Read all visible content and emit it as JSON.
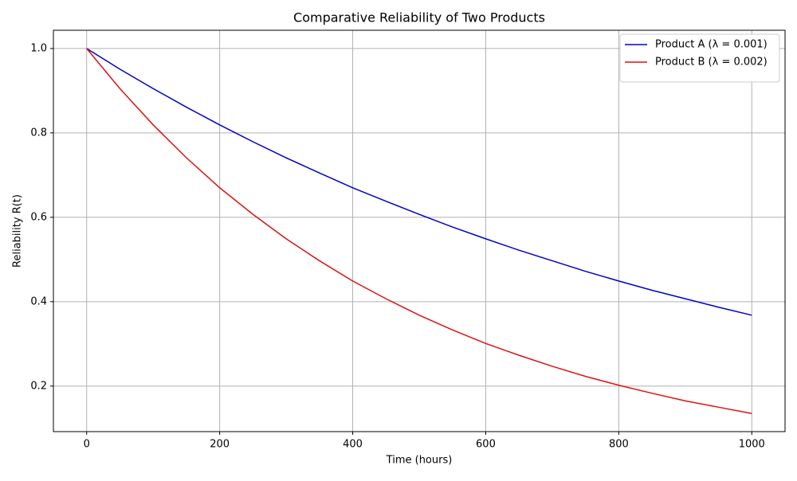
{
  "chart_data": {
    "type": "line",
    "title": "Comparative Reliability of Two Products",
    "x_label": "Time (hours)",
    "y_label": "Reliability R(t)",
    "x": [
      0,
      50,
      100,
      150,
      200,
      250,
      300,
      350,
      400,
      450,
      500,
      550,
      600,
      650,
      700,
      750,
      800,
      850,
      900,
      950,
      1000
    ],
    "series": [
      {
        "name": "Product A (λ = 0.001)",
        "color": "#0000cc",
        "values": [
          1,
          0.951,
          0.905,
          0.861,
          0.819,
          0.779,
          0.741,
          0.705,
          0.67,
          0.638,
          0.607,
          0.577,
          0.549,
          0.522,
          0.497,
          0.472,
          0.449,
          0.427,
          0.407,
          0.387,
          0.368
        ]
      },
      {
        "name": "Product B (λ = 0.002)",
        "color": "#dd1111",
        "values": [
          1,
          0.905,
          0.819,
          0.741,
          0.67,
          0.607,
          0.549,
          0.497,
          0.449,
          0.407,
          0.368,
          0.333,
          0.301,
          0.273,
          0.247,
          0.223,
          0.202,
          0.183,
          0.165,
          0.15,
          0.135
        ]
      }
    ],
    "xlim": [
      -50,
      1050
    ],
    "ylim": [
      0.0921,
      1.0432
    ],
    "xticks": [
      0,
      200,
      400,
      600,
      800,
      1000
    ],
    "yticks": [
      0.2,
      0.4,
      0.6,
      0.8,
      {
        "value": 1,
        "label": "1.0"
      }
    ],
    "grid": true,
    "legend": "upper right"
  }
}
